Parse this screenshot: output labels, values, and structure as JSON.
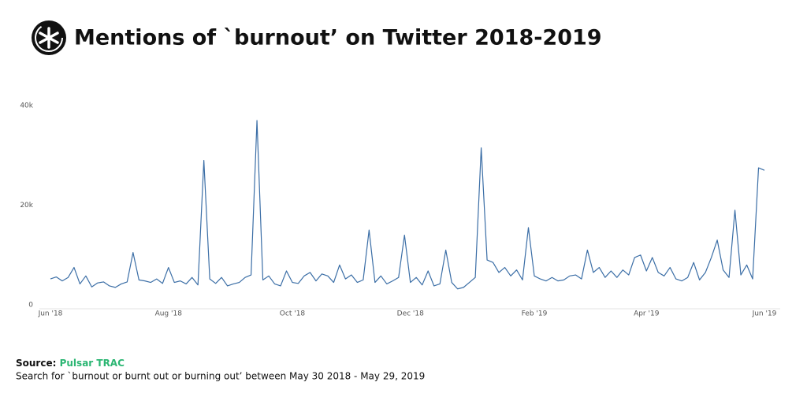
{
  "chart_data": {
    "type": "line",
    "title": "Mentions of `burnout’ on Twitter 2018-2019",
    "source_label": "Source:",
    "source_name": "Pulsar TRAC",
    "note": "Search for `burnout or burnt out or burning out’ between May 30 2018 - May 29, 2019",
    "categories": [
      "Jun '18",
      null,
      null,
      null,
      null,
      null,
      null,
      null,
      null,
      null,
      null,
      null,
      null,
      null,
      null,
      null,
      null,
      null,
      null,
      null,
      "Aug '18",
      null,
      null,
      null,
      null,
      null,
      null,
      null,
      null,
      null,
      null,
      null,
      null,
      null,
      null,
      null,
      null,
      null,
      null,
      null,
      null,
      "Oct '18",
      null,
      null,
      null,
      null,
      null,
      null,
      null,
      null,
      null,
      null,
      null,
      null,
      null,
      null,
      null,
      null,
      null,
      null,
      null,
      "Dec '18",
      null,
      null,
      null,
      null,
      null,
      null,
      null,
      null,
      null,
      null,
      null,
      null,
      null,
      null,
      null,
      null,
      null,
      null,
      null,
      null,
      "Feb '19",
      null,
      null,
      null,
      null,
      null,
      null,
      null,
      null,
      null,
      null,
      null,
      null,
      null,
      null,
      null,
      null,
      null,
      null,
      "Apr '19",
      null,
      null,
      null,
      null,
      null,
      null,
      null,
      null,
      null,
      null,
      null,
      null,
      null,
      null,
      null,
      null,
      null,
      null,
      null,
      "Jun '19"
    ],
    "series": [
      {
        "color": "#3b6ea6",
        "values": [
          5200,
          5600,
          4800,
          5500,
          7500,
          4200,
          5800,
          3600,
          4400,
          4600,
          3800,
          3500,
          4200,
          4600,
          10500,
          5000,
          4800,
          4500,
          5200,
          4300,
          7500,
          4500,
          4800,
          4200,
          5500,
          4000,
          29000,
          5200,
          4300,
          5500,
          3800,
          4200,
          4500,
          5500,
          6000,
          37000,
          5000,
          5800,
          4200,
          3800,
          6800,
          4500,
          4300,
          5800,
          6500,
          4800,
          6200,
          5800,
          4500,
          8000,
          5200,
          6000,
          4500,
          5000,
          15000,
          4500,
          5800,
          4200,
          4800,
          5500,
          14000,
          4500,
          5500,
          4000,
          6800,
          3800,
          4200,
          11000,
          4500,
          3200,
          3500,
          4500,
          5500,
          31500,
          9000,
          8500,
          6500,
          7500,
          5800,
          7000,
          5000,
          15500,
          5800,
          5200,
          4800,
          5500,
          4800,
          5000,
          5800,
          6000,
          5200,
          11000,
          6500,
          7500,
          5500,
          6800,
          5500,
          7000,
          6000,
          9500,
          10000,
          6800,
          9500,
          6500,
          5800,
          7500,
          5200,
          4800,
          5500,
          8500,
          5000,
          6500,
          9500,
          13000,
          7000,
          5500,
          19000,
          6000,
          8000,
          5200,
          27500,
          27000
        ]
      }
    ],
    "ylim": [
      0,
      40000
    ],
    "yticks": [
      0,
      {
        "value": 20000,
        "label": "20k"
      },
      {
        "value": 40000,
        "label": "40k"
      }
    ],
    "grid": false
  }
}
